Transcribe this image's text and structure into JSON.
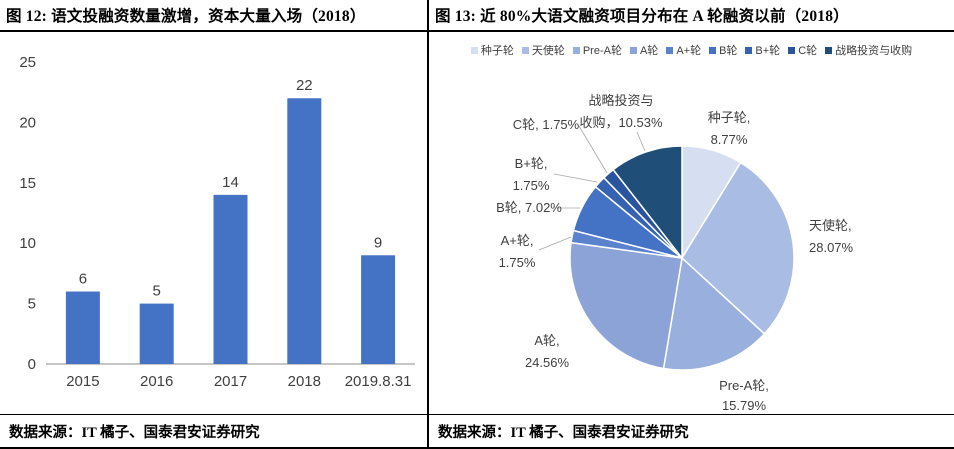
{
  "left_panel": {
    "title": "图 12: 语文投融资数量激增，资本大量入场（2018）",
    "source": "数据来源：IT 橘子、国泰君安证券研究"
  },
  "right_panel": {
    "title": "图 13: 近 80%大语文融资项目分布在 A 轮融资以前（2018）",
    "source": "数据来源：IT 橘子、国泰君安证券研究"
  },
  "chart_data": [
    {
      "type": "bar",
      "title": "语文投融资数量激增，资本大量入场（2018）",
      "categories": [
        "2015",
        "2016",
        "2017",
        "2018",
        "2019.8.31"
      ],
      "values": [
        6,
        5,
        14,
        22,
        9
      ],
      "xlabel": "",
      "ylabel": "",
      "ylim": [
        0,
        25
      ],
      "yticks": [
        0,
        5,
        10,
        15,
        20,
        25
      ],
      "bar_color": "#4472C4",
      "grid": false,
      "legend_position": "none"
    },
    {
      "type": "pie",
      "title": "近 80%大语文融资项目分布在 A 轮融资以前（2018）",
      "legend_position": "top",
      "start_angle_deg": 0,
      "direction": "clockwise",
      "slices": [
        {
          "label": "种子轮",
          "value": 8.77,
          "color": "#D5DFF1",
          "callout_lines": [
            "种子轮,",
            "8.77%"
          ]
        },
        {
          "label": "天使轮",
          "value": 28.07,
          "color": "#A8BCE4",
          "callout_lines": [
            "天使轮,",
            "28.07%"
          ]
        },
        {
          "label": "Pre-A轮",
          "value": 15.79,
          "color": "#99AFDE",
          "callout_lines": [
            "Pre-A轮,",
            "15.79%"
          ]
        },
        {
          "label": "A轮",
          "value": 24.56,
          "color": "#8BA3D7",
          "callout_lines": [
            "A轮,",
            "24.56%"
          ]
        },
        {
          "label": "A+轮",
          "value": 1.75,
          "color": "#5B83CD",
          "callout_lines": [
            "A+轮,",
            "1.75%"
          ]
        },
        {
          "label": "B轮",
          "value": 7.02,
          "color": "#4472C4",
          "callout_lines": [
            "B轮, 7.02%"
          ]
        },
        {
          "label": "B+轮",
          "value": 1.75,
          "color": "#3663B1",
          "callout_lines": [
            "B+轮,",
            "1.75%"
          ]
        },
        {
          "label": "C轮",
          "value": 1.75,
          "color": "#2A549E",
          "callout_lines": [
            "C轮, 1.75%"
          ]
        },
        {
          "label": "战略投资与收购",
          "value": 10.53,
          "color": "#1F4E79",
          "callout_lines": [
            "战略投资与",
            "收购，10.53%"
          ]
        }
      ]
    }
  ]
}
